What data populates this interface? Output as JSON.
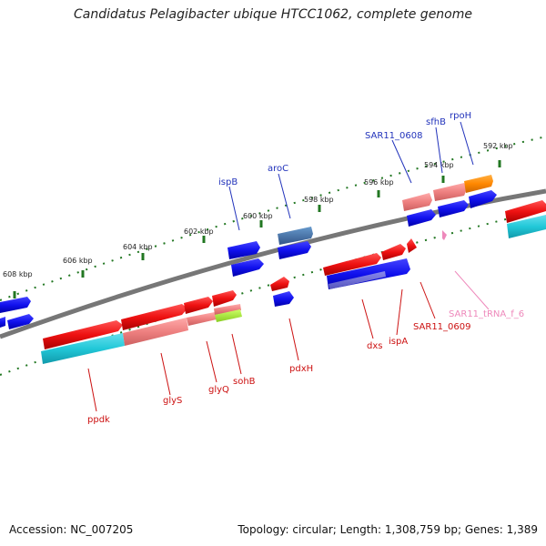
{
  "title": "Candidatus Pelagibacter ubique HTCC1062, complete genome",
  "footer": {
    "accession": "Accession: NC_007205",
    "summary": "Topology: circular; Length: 1,308,759 bp; Genes: 1,389"
  },
  "ticks": [
    "608 kbp",
    "606 kbp",
    "604 kbp",
    "602 kbp",
    "600 kbp",
    "598 kbp",
    "596 kbp",
    "594 kbp",
    "592 kbp"
  ],
  "genes_top": [
    "ispB",
    "aroC",
    "SAR11_0608",
    "sfhB",
    "rpoH"
  ],
  "genes_bottom": [
    "ppdk",
    "glyS",
    "glyQ",
    "sohB",
    "pdxH",
    "dxs",
    "ispA",
    "SAR11_0609",
    "SAR11_tRNA_f_6"
  ],
  "colors": {
    "forward_gene": "#ee1111",
    "cds_blue": "#1111ee",
    "backbone": "#777777",
    "tick_green": "#227722",
    "pink_feature": "#ee8888",
    "cyan_feature": "#22c8d8",
    "orange_feature": "#ff8800",
    "lime_feature": "#aaee33",
    "steel_feature": "#4477aa",
    "label_blue": "#2233bb",
    "label_red": "#cc1111",
    "label_pink": "#ee88bb"
  }
}
